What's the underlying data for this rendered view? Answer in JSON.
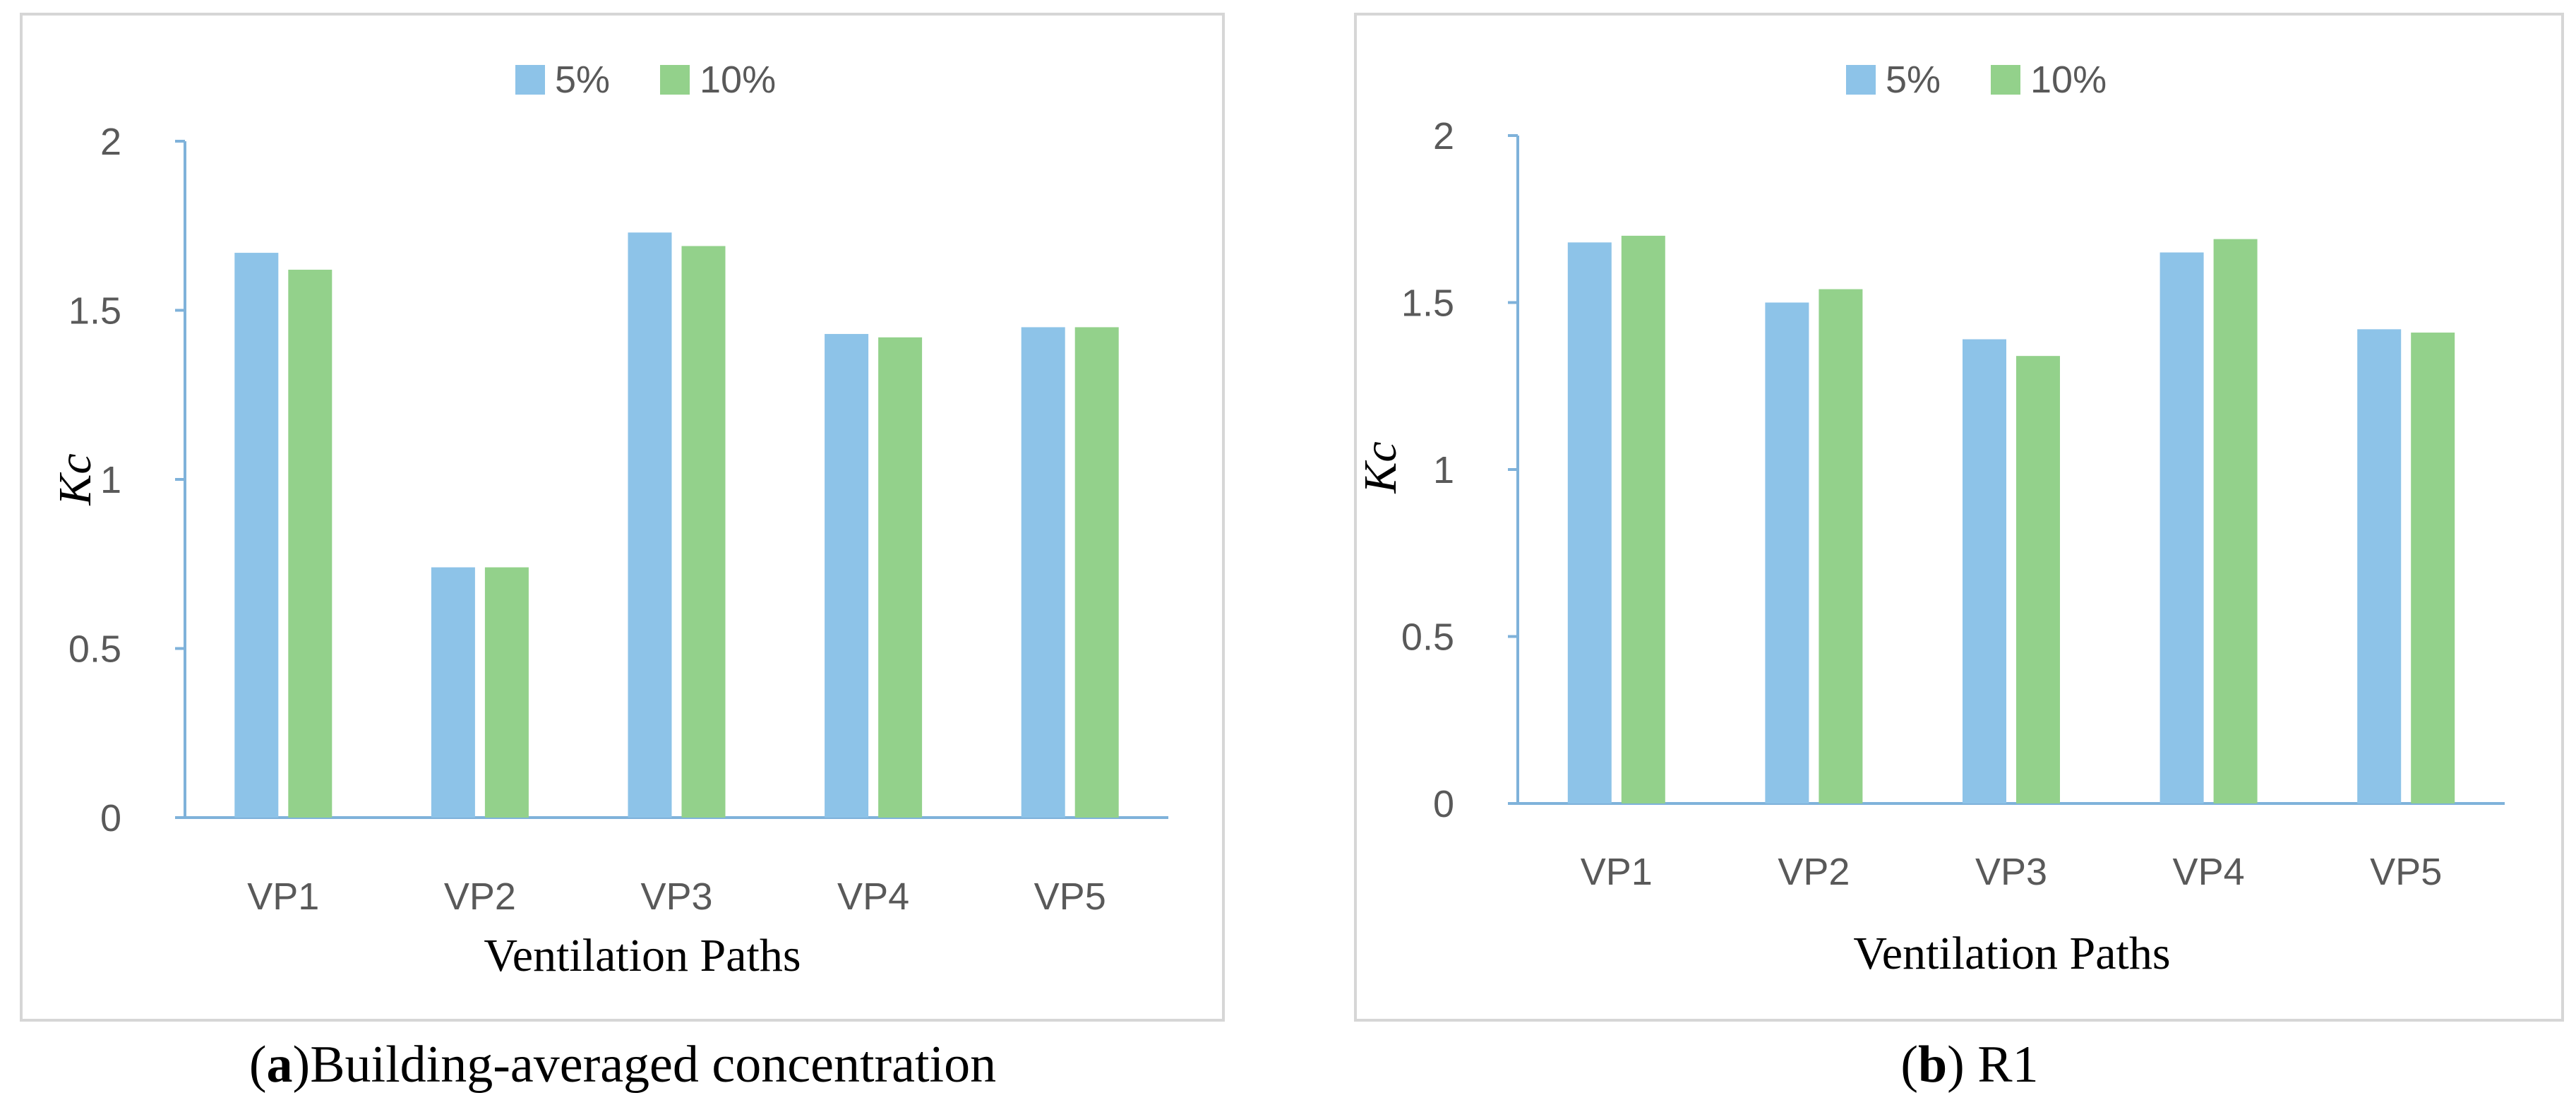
{
  "colors": {
    "series_5": "#8DC3E8",
    "series_10": "#93D18B",
    "axis": "#7FB2DA",
    "frame": "#D6D6D6",
    "tick_text": "#595959",
    "label_text": "#000000"
  },
  "chart_data": [
    {
      "type": "bar",
      "panel_label": "a",
      "caption_text": "Building-averaged concentration",
      "title": "",
      "xlabel": "Ventilation Paths",
      "ylabel": "Kc",
      "ylim": [
        0,
        2
      ],
      "yticks": [
        0,
        0.5,
        1,
        1.5,
        2
      ],
      "ytick_labels": [
        "0",
        "0.5",
        "1",
        "1.5",
        "2"
      ],
      "grid": false,
      "legend_position": "top-center",
      "categories": [
        "VP1",
        "VP2",
        "VP3",
        "VP4",
        "VP5"
      ],
      "series": [
        {
          "name": "5%",
          "values": [
            1.67,
            0.74,
            1.73,
            1.43,
            1.45
          ]
        },
        {
          "name": "10%",
          "values": [
            1.62,
            0.74,
            1.69,
            1.42,
            1.45
          ]
        }
      ]
    },
    {
      "type": "bar",
      "panel_label": "b",
      "caption_text": "R1",
      "title": "",
      "xlabel": "Ventilation Paths",
      "ylabel": "Kc",
      "ylim": [
        0,
        2
      ],
      "yticks": [
        0,
        0.5,
        1,
        1.5,
        2
      ],
      "ytick_labels": [
        "0",
        "0.5",
        "1",
        "1.5",
        "2"
      ],
      "grid": false,
      "legend_position": "top-center",
      "categories": [
        "VP1",
        "VP2",
        "VP3",
        "VP4",
        "VP5"
      ],
      "series": [
        {
          "name": "5%",
          "values": [
            1.68,
            1.5,
            1.39,
            1.65,
            1.42
          ]
        },
        {
          "name": "10%",
          "values": [
            1.7,
            1.54,
            1.34,
            1.69,
            1.41
          ]
        }
      ]
    }
  ]
}
